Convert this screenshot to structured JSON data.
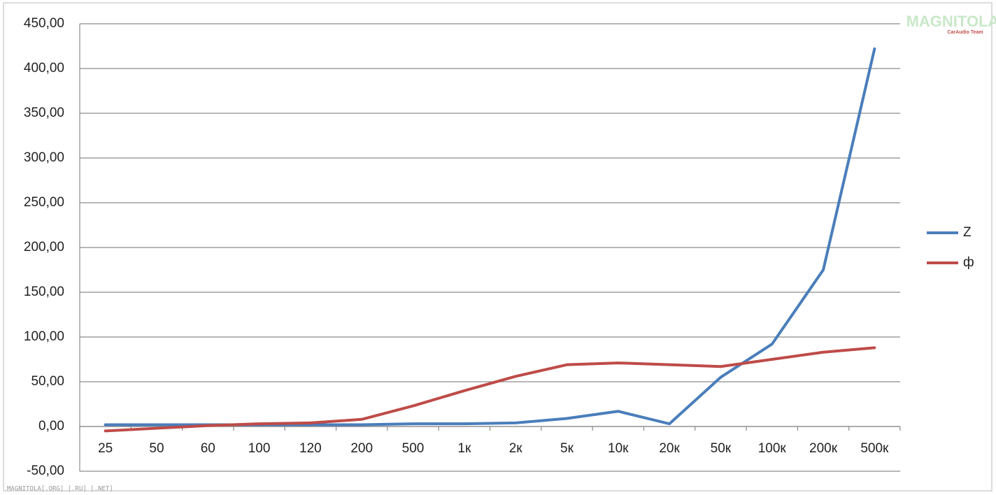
{
  "chart_data": {
    "type": "line",
    "categories": [
      "25",
      "50",
      "60",
      "100",
      "120",
      "200",
      "500",
      "1к",
      "2к",
      "5к",
      "10к",
      "20к",
      "50к",
      "100к",
      "200к",
      "500к"
    ],
    "series": [
      {
        "name": "Z",
        "color": "#4a7ebb",
        "values": [
          2,
          2,
          2,
          2,
          2,
          2,
          3,
          3,
          4,
          9,
          17,
          3,
          55,
          92,
          175,
          422
        ]
      },
      {
        "name": "ф",
        "color": "#be4b48",
        "values": [
          -5,
          -2,
          1,
          3,
          4,
          8,
          23,
          40,
          56,
          69,
          71,
          69,
          67,
          75,
          83,
          88
        ]
      }
    ],
    "ylim": [
      -50,
      450
    ],
    "yticks": [
      {
        "value": -50,
        "label": "-50,00"
      },
      {
        "value": 0,
        "label": "0,00"
      },
      {
        "value": 50,
        "label": "50,00"
      },
      {
        "value": 100,
        "label": "100,00"
      },
      {
        "value": 150,
        "label": "150,00"
      },
      {
        "value": 200,
        "label": "200,00"
      },
      {
        "value": 250,
        "label": "250,00"
      },
      {
        "value": 300,
        "label": "300,00"
      },
      {
        "value": 350,
        "label": "350,00"
      },
      {
        "value": 400,
        "label": "400,00"
      },
      {
        "value": 450,
        "label": "450,00"
      }
    ],
    "grid": true,
    "legend": "right",
    "annotations": [
      "MAGNITOLA",
      "CarAudio Team",
      "MAGNITOLA[.ORG] [.RU] [.NET]"
    ]
  }
}
